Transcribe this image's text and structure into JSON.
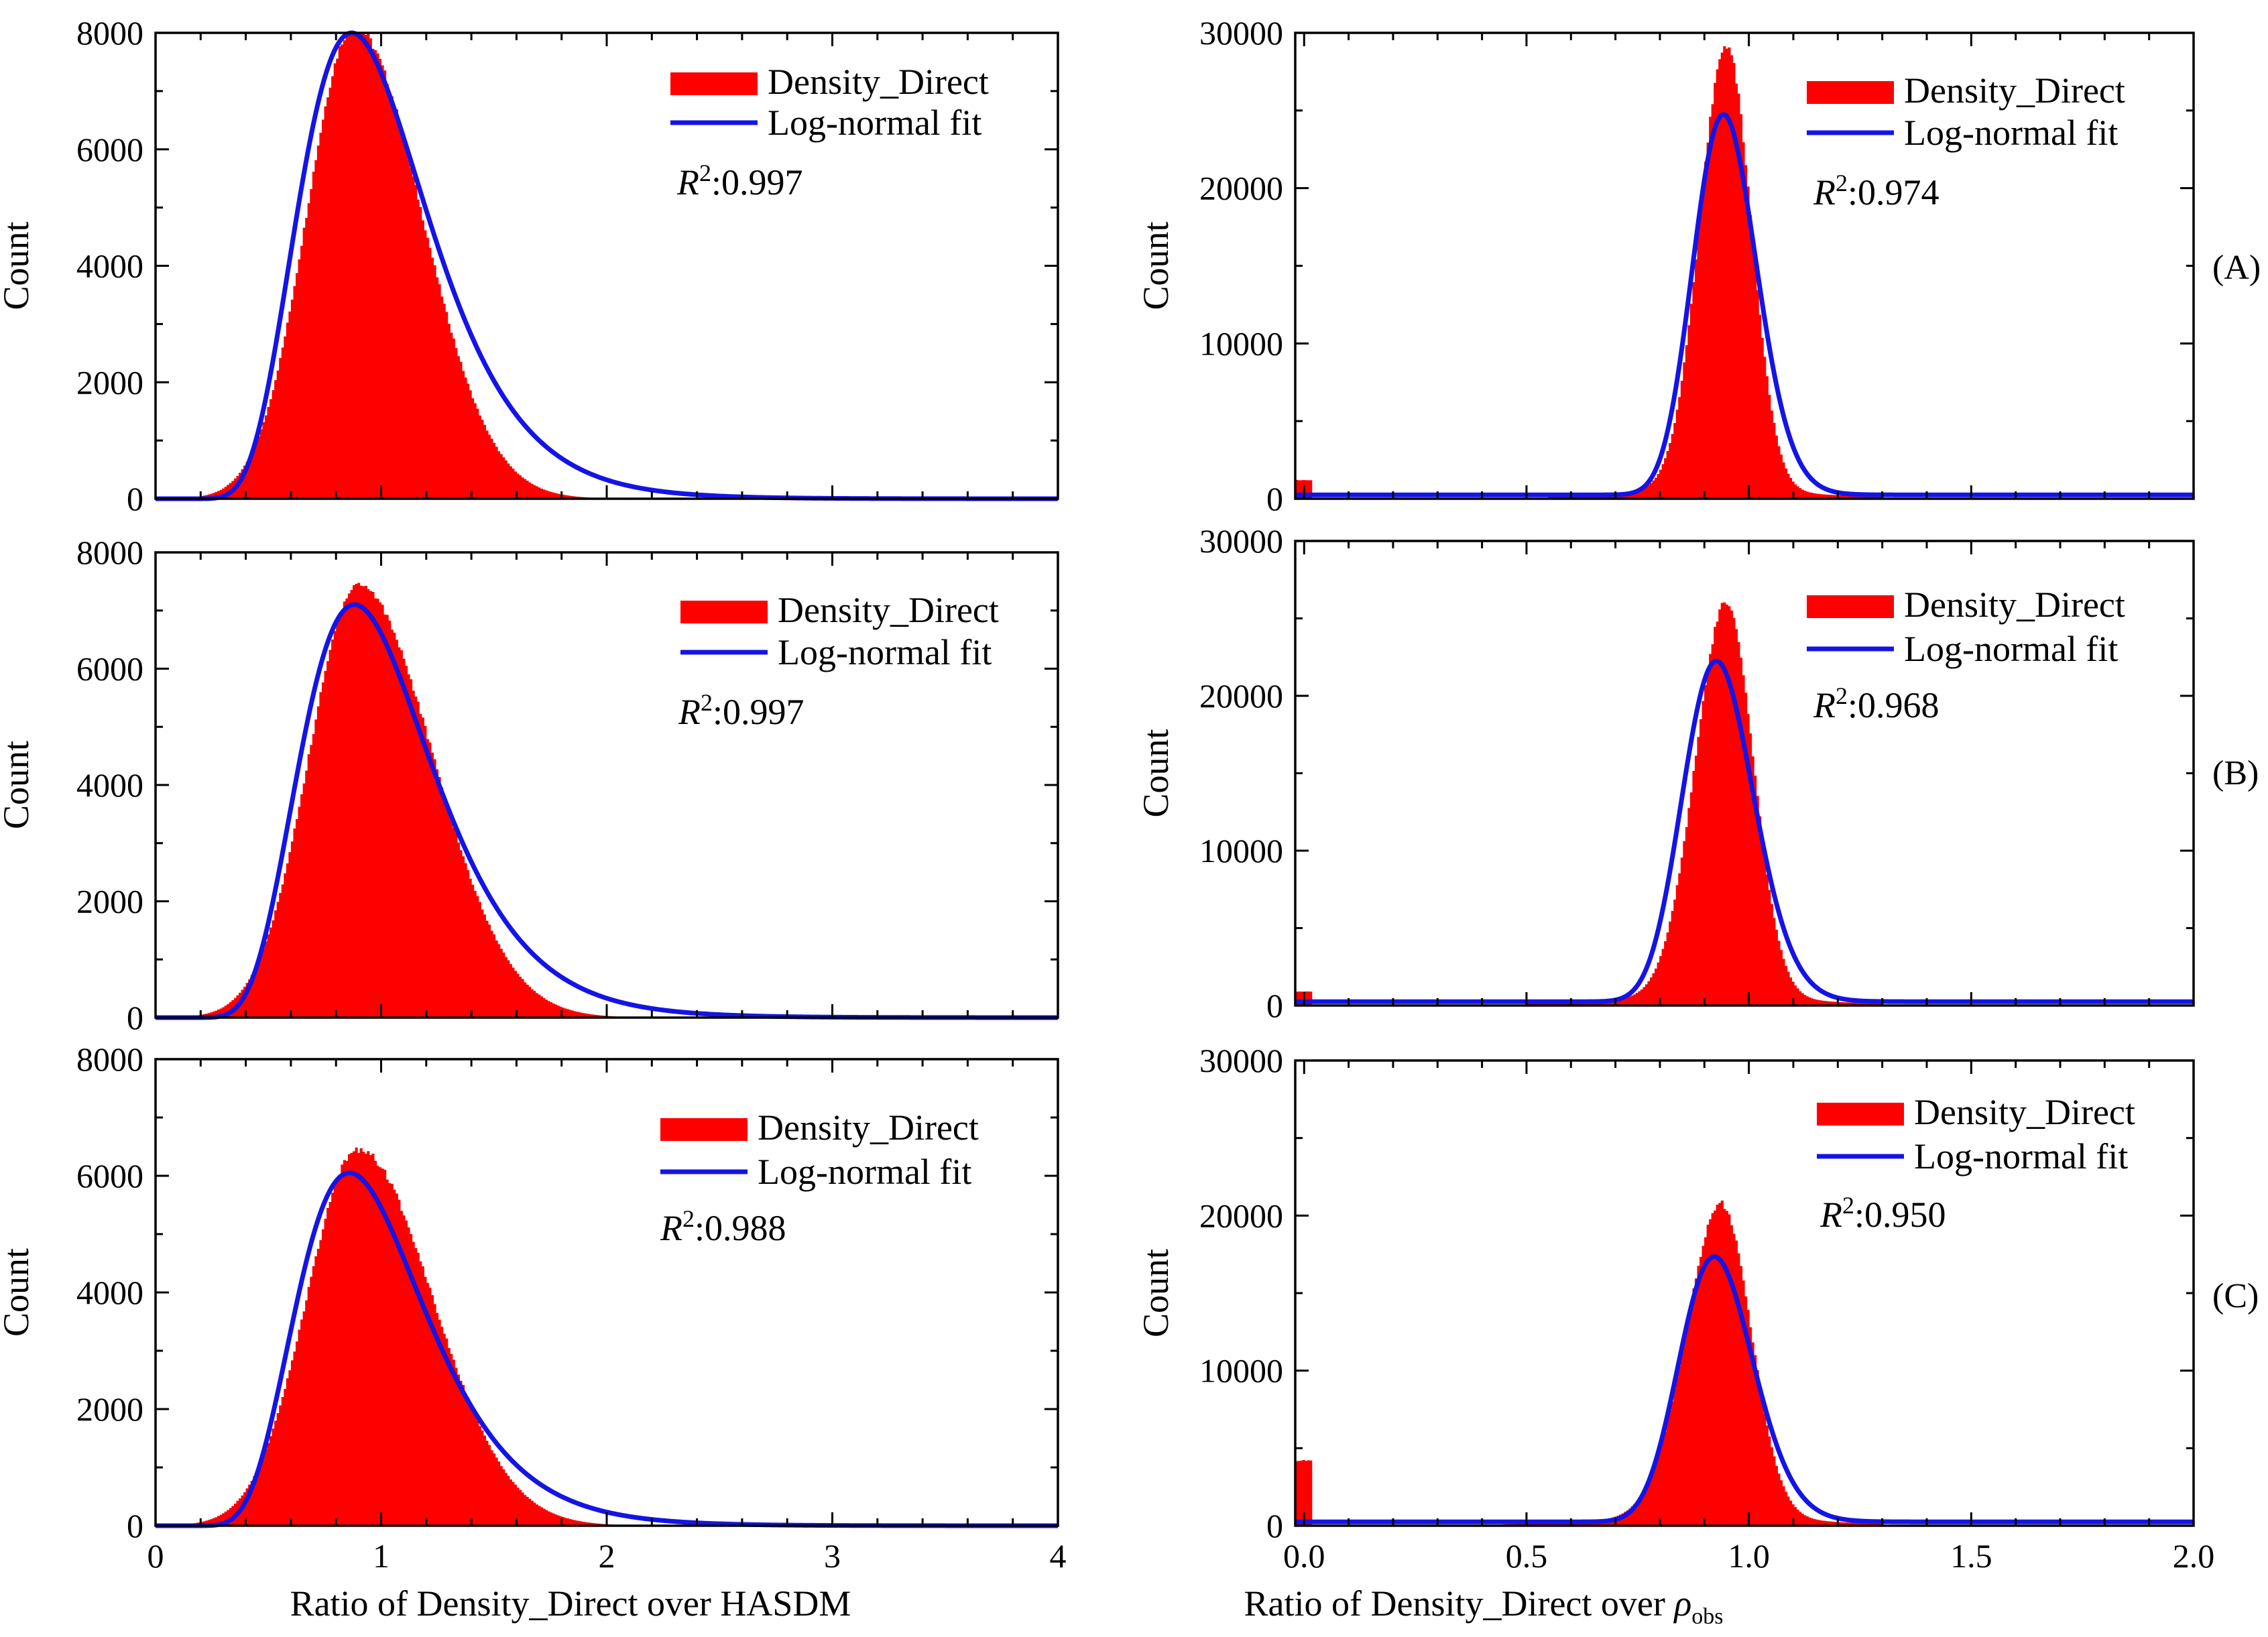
{
  "figure": {
    "row_labels": [
      "(A)",
      "(B)",
      "(C)"
    ],
    "left_xlabel": "Ratio of Density_Direct over HASDM",
    "right_xlabel_prefix": "Ratio of Density_Direct over ",
    "right_xlabel_symbol": "ρ",
    "right_xlabel_subscript": "obs",
    "ylabel": "Count",
    "legend_bar": "Density_Direct",
    "legend_line": "Log-normal fit",
    "r2_symbol": "R",
    "r2_exponent": "2"
  },
  "colors": {
    "histogram": "#ff0000",
    "fit": "#1414e6",
    "axis": "#000000",
    "background": "#ffffff"
  },
  "chart_data": [
    {
      "id": "A-left",
      "type": "area",
      "row": "(A)",
      "series": [
        {
          "name": "Density_Direct",
          "kind": "histogram"
        },
        {
          "name": "Log-normal fit",
          "kind": "line"
        }
      ],
      "xlabel": "",
      "ylabel": "Count",
      "xlim": [
        0,
        4
      ],
      "ylim": [
        0,
        8000
      ],
      "xticks": [
        0,
        1,
        2,
        3,
        4
      ],
      "show_xtick_labels": false,
      "yticks": [
        0,
        2000,
        4000,
        6000,
        8000
      ],
      "yticklabels": [
        "0",
        "2000",
        "4000",
        "6000",
        "8000"
      ],
      "r2_value": ":0.997",
      "histogram": {
        "mode": 0.88,
        "sigma_left": 0.21,
        "sigma_right": 0.3,
        "peak": 8050,
        "tail_start": 0.3,
        "tail_end": 2.6,
        "tail_height": 80,
        "spike": 0
      },
      "fit": {
        "mu": -0.0316,
        "sigma": 0.329,
        "peak": 8000
      }
    },
    {
      "id": "A-right",
      "type": "area",
      "row": "(A)",
      "series": [
        {
          "name": "Density_Direct",
          "kind": "histogram"
        },
        {
          "name": "Log-normal fit",
          "kind": "line"
        }
      ],
      "xlabel": "",
      "ylabel": "Count",
      "xlim": [
        -0.02,
        2.0
      ],
      "ylim": [
        0,
        30000
      ],
      "xticks": [
        0.0,
        0.5,
        1.0,
        1.5,
        2.0
      ],
      "show_xtick_labels": false,
      "yticks": [
        0,
        10000,
        20000,
        30000
      ],
      "yticklabels": [
        "0",
        "10000",
        "20000",
        "30000"
      ],
      "r2_value": ":0.974",
      "histogram": {
        "mode": 0.95,
        "sigma_left": 0.06,
        "sigma_right": 0.055,
        "peak": 28200,
        "tail_start": 0.55,
        "tail_end": 1.3,
        "tail_height": 1300,
        "spike": 1200
      },
      "fit": {
        "mu": -0.0532,
        "sigma": 0.0756,
        "peak": 24500
      }
    },
    {
      "id": "B-left",
      "type": "area",
      "row": "(B)",
      "series": [
        {
          "name": "Density_Direct",
          "kind": "histogram"
        },
        {
          "name": "Log-normal fit",
          "kind": "line"
        }
      ],
      "xlabel": "",
      "ylabel": "Count",
      "xlim": [
        0,
        4
      ],
      "ylim": [
        0,
        8000
      ],
      "xticks": [
        0,
        1,
        2,
        3,
        4
      ],
      "show_xtick_labels": false,
      "yticks": [
        0,
        2000,
        4000,
        6000,
        8000
      ],
      "yticklabels": [
        "0",
        "2000",
        "4000",
        "6000",
        "8000"
      ],
      "r2_value": ":0.997",
      "histogram": {
        "mode": 0.9,
        "sigma_left": 0.22,
        "sigma_right": 0.33,
        "peak": 7400,
        "tail_start": 0.3,
        "tail_end": 2.6,
        "tail_height": 70,
        "spike": 0
      },
      "fit": {
        "mu": -0.0162,
        "sigma": 0.331,
        "peak": 7100
      }
    },
    {
      "id": "B-right",
      "type": "area",
      "row": "(B)",
      "series": [
        {
          "name": "Density_Direct",
          "kind": "histogram"
        },
        {
          "name": "Log-normal fit",
          "kind": "line"
        }
      ],
      "xlabel": "",
      "ylabel": "Count",
      "xlim": [
        -0.02,
        2.0
      ],
      "ylim": [
        0,
        30000
      ],
      "xticks": [
        0.0,
        0.5,
        1.0,
        1.5,
        2.0
      ],
      "show_xtick_labels": false,
      "yticks": [
        0,
        10000,
        20000,
        30000
      ],
      "yticklabels": [
        "0",
        "10000",
        "20000",
        "30000"
      ],
      "r2_value": ":0.968",
      "histogram": {
        "mode": 0.95,
        "sigma_left": 0.07,
        "sigma_right": 0.06,
        "peak": 24900,
        "tail_start": 0.5,
        "tail_end": 1.3,
        "tail_height": 1300,
        "spike": 900
      },
      "fit": {
        "mu": -0.0684,
        "sigma": 0.0862,
        "peak": 22000
      }
    },
    {
      "id": "C-left",
      "type": "area",
      "row": "(C)",
      "series": [
        {
          "name": "Density_Direct",
          "kind": "histogram"
        },
        {
          "name": "Log-normal fit",
          "kind": "line"
        }
      ],
      "xlabel": "Ratio of Density_Direct over HASDM",
      "ylabel": "Count",
      "xlim": [
        0,
        4
      ],
      "ylim": [
        0,
        8000
      ],
      "xticks": [
        0,
        1,
        2,
        3,
        4
      ],
      "show_xtick_labels": true,
      "xticklabels": [
        "0",
        "1",
        "2",
        "3",
        "4"
      ],
      "yticks": [
        0,
        2000,
        4000,
        6000,
        8000
      ],
      "yticklabels": [
        "0",
        "2000",
        "4000",
        "6000",
        "8000"
      ],
      "r2_value": ":0.988",
      "histogram": {
        "mode": 0.9,
        "sigma_left": 0.23,
        "sigma_right": 0.33,
        "peak": 6400,
        "tail_start": 0.3,
        "tail_end": 2.6,
        "tail_height": 80,
        "spike": 0
      },
      "fit": {
        "mu": -0.0416,
        "sigma": 0.331,
        "peak": 6050
      }
    },
    {
      "id": "C-right",
      "type": "area",
      "row": "(C)",
      "series": [
        {
          "name": "Density_Direct",
          "kind": "histogram"
        },
        {
          "name": "Log-normal fit",
          "kind": "line"
        }
      ],
      "xlabel": "Ratio of Density_Direct over ρobs",
      "ylabel": "Count",
      "xlim": [
        -0.02,
        2.0
      ],
      "ylim": [
        0,
        30000
      ],
      "xticks": [
        0.0,
        0.5,
        1.0,
        1.5,
        2.0
      ],
      "show_xtick_labels": true,
      "xticklabels": [
        "0.0",
        "0.5",
        "1.0",
        "1.5",
        "2.0"
      ],
      "yticks": [
        0,
        10000,
        20000,
        30000
      ],
      "yticklabels": [
        "0",
        "10000",
        "20000",
        "30000"
      ],
      "r2_value": ":0.950",
      "histogram": {
        "mode": 0.94,
        "sigma_left": 0.08,
        "sigma_right": 0.065,
        "peak": 19600,
        "tail_start": 0.45,
        "tail_end": 1.3,
        "tail_height": 1400,
        "spike": 4200
      },
      "fit": {
        "mu": -0.0728,
        "sigma": 0.0899,
        "peak": 17100
      }
    }
  ]
}
